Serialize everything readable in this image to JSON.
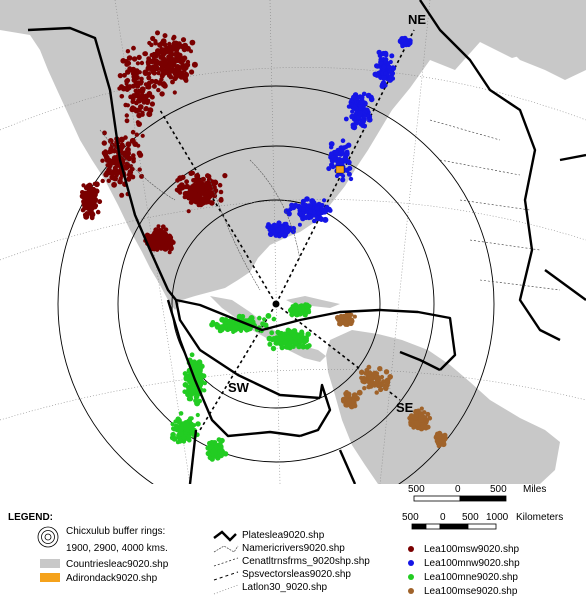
{
  "map": {
    "direction_labels": [
      "NE",
      "SW",
      "SE"
    ],
    "colors": {
      "land": "#c8c8c8",
      "ocean": "#ffffff",
      "plates": "#000000",
      "adirondack": "#f5a21b",
      "msw": "#7a0000",
      "mnw": "#1515e6",
      "mne": "#22cc22",
      "mse": "#a0632a"
    }
  },
  "scale": {
    "miles_ticks": [
      "500",
      "0",
      "500"
    ],
    "miles_unit": "Miles",
    "km_ticks": [
      "500",
      "0",
      "500",
      "1000"
    ],
    "km_unit": "Kilometers"
  },
  "legend": {
    "title": "LEGEND:",
    "buffer_label_1": "Chicxulub buffer rings:",
    "buffer_label_2": "1900, 2900, 4000 kms.",
    "countries": "Countriesleac9020.shp",
    "adirondack": "Adirondack9020.shp",
    "plates": "Plateslea9020.shp",
    "rivers": "Namericrivers9020.shp",
    "cenatl": "Cenatltrnsfrms_9020shp.shp",
    "spsvectors": "Spsvectorsleas9020.shp",
    "latlon": "Latlon30_9020.shp",
    "msw": "Lea100msw9020.shp",
    "mnw": "Lea100mnw9020.shp",
    "mne": "Lea100mne9020.shp",
    "mse": "Lea100mse9020.shp"
  }
}
